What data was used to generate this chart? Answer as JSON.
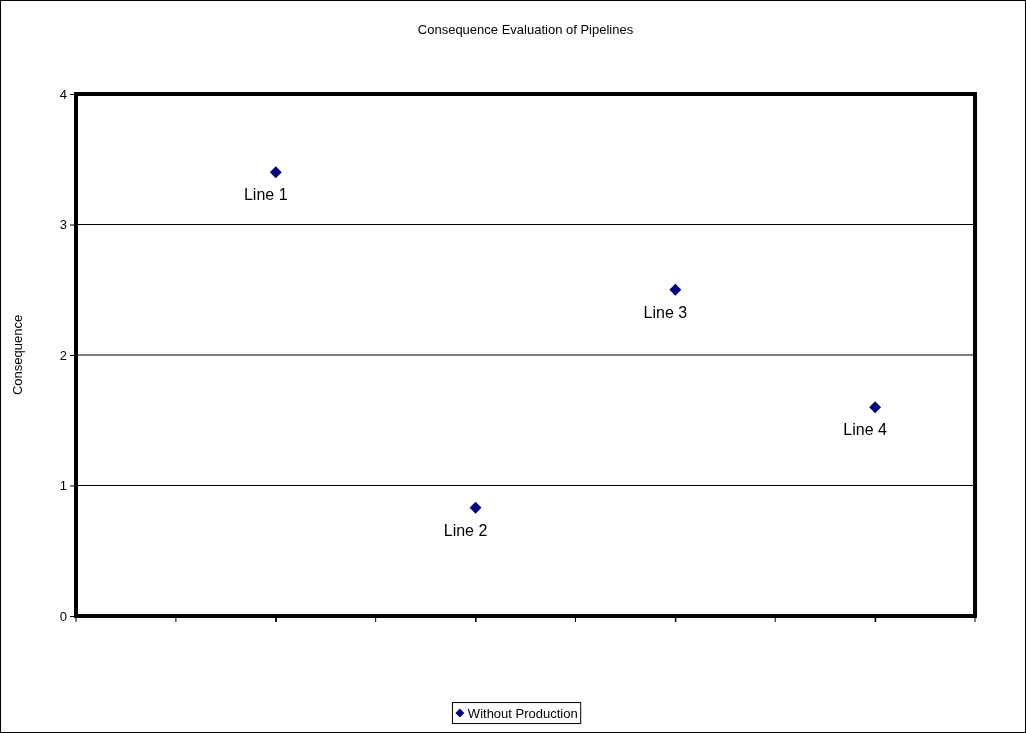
{
  "chart_data": {
    "type": "scatter",
    "title": "Consequence Evaluation of Pipelines",
    "ylabel": "Consequence",
    "categories": [
      null,
      null,
      null,
      null
    ],
    "series": [
      {
        "name": "Without Production",
        "color": "#000080",
        "values": [
          3.4,
          0.83,
          2.5,
          1.6
        ]
      }
    ],
    "ylim": [
      0,
      4
    ],
    "yticks": [
      0,
      1,
      2,
      3,
      4
    ],
    "grid": "y",
    "legend": "bottom",
    "marker": "diamond",
    "tick_labels": "y",
    "annotations": [
      {
        "text": "Line 1",
        "y": 3.4
      },
      {
        "text": "Line 2",
        "y": 0.83
      },
      {
        "text": "Line 3",
        "y": 2.5
      },
      {
        "text": "Line 4",
        "y": 1.6
      }
    ]
  }
}
